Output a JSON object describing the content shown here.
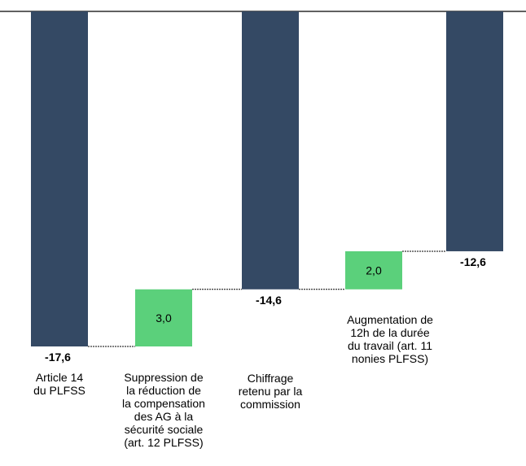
{
  "chart_data": {
    "type": "waterfall",
    "categories": [
      "Article 14 du PLFSS",
      "Suppression de la réduction de la compensation des AG à la sécurité sociale (art. 12 PLFSS)",
      "Chiffrage retenu par la commission",
      "Augmentation de 12h de la durée du travail (art. 11 nonies PLFSS)",
      ""
    ],
    "label_lines": [
      [
        "Article 14",
        "du PLFSS"
      ],
      [
        "Suppression de",
        "la réduction de",
        "la compensation",
        "des AG à la",
        "sécurité sociale",
        "(art. 12 PLFSS)"
      ],
      [
        "Chiffrage",
        "retenu par la",
        "commission"
      ],
      [
        "Augmentation de",
        "12h de la durée",
        "du travail (art. 11",
        "nonies PLFSS)"
      ],
      []
    ],
    "values": [
      -17.6,
      3.0,
      -14.6,
      2.0,
      -12.6
    ],
    "value_labels": [
      "-17,6",
      "3,0",
      "-14,6",
      "2,0",
      "-12,6"
    ],
    "kinds": [
      "total",
      "delta",
      "total",
      "delta",
      "total"
    ],
    "colors": {
      "total": "#344964",
      "delta": "#5bd07b"
    },
    "ylim": [
      -17.6,
      0
    ]
  }
}
